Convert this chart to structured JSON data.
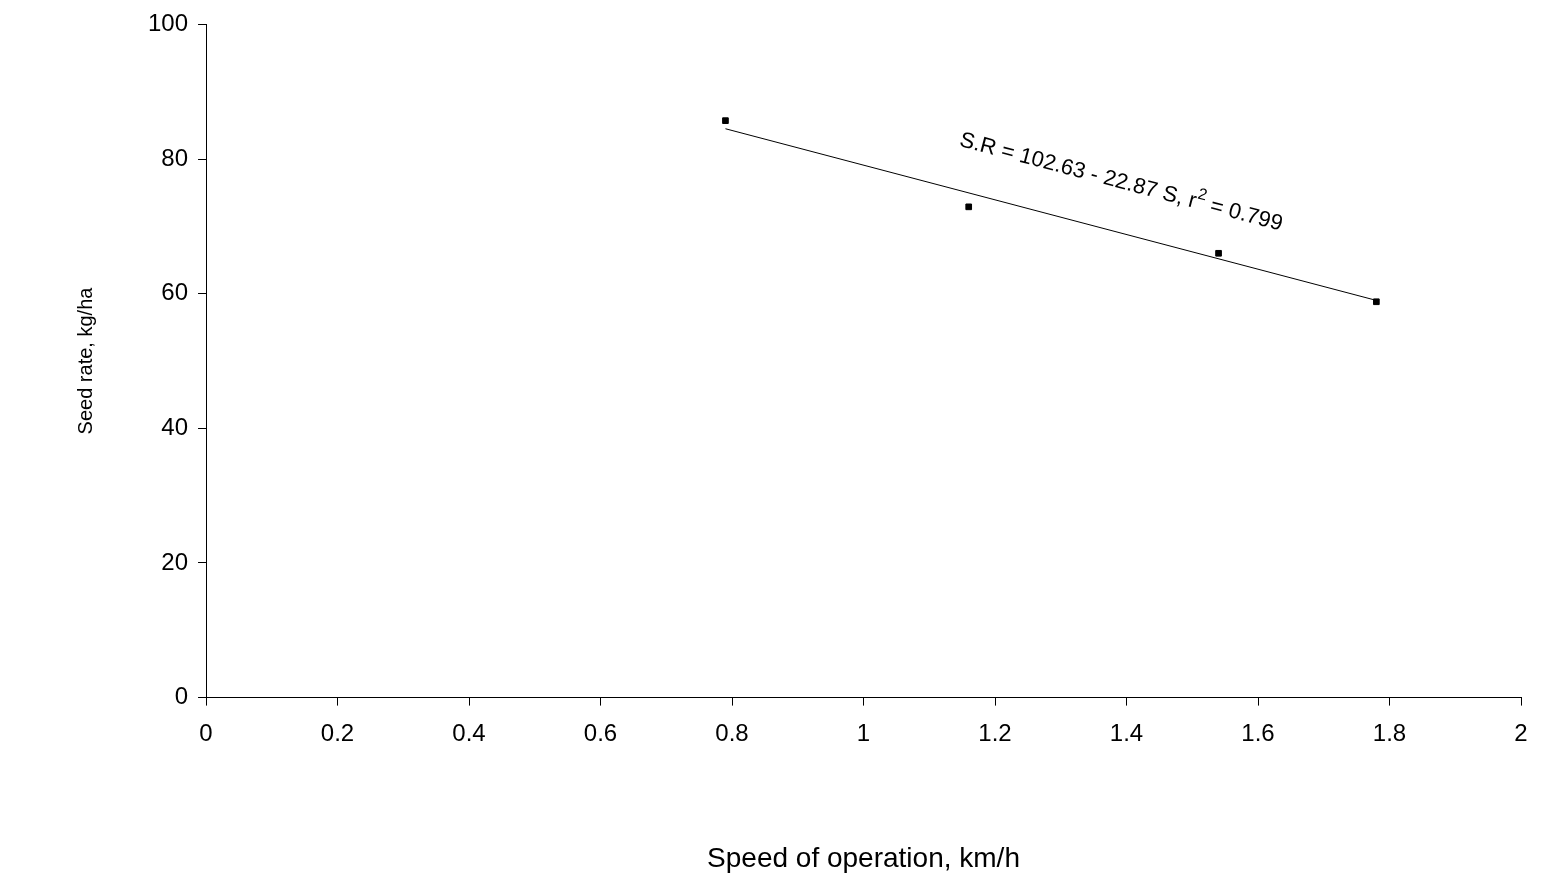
{
  "chart_data": {
    "type": "scatter",
    "xlabel": "Speed of operation, km/h",
    "ylabel": "Seed rate, kg/ha",
    "series": [
      {
        "color": "#000000",
        "marker": "square",
        "x": [
          0.79,
          1.16,
          1.54,
          1.78
        ],
        "values": [
          85.7,
          72.9,
          66.0,
          58.8
        ]
      },
      {
        "type": "line",
        "color": "#000000",
        "marker": "none",
        "x": [
          0.79,
          1.78
        ],
        "values": [
          84.5,
          59.0
        ]
      }
    ],
    "annotations": [
      "S.R = 102.63 - 22.87 S, r$^{2}$ = 0.799"
    ],
    "xlim": [
      0,
      2
    ],
    "xticks": [
      0,
      0.2,
      0.4,
      0.6,
      0.8,
      1,
      1.2,
      1.4,
      1.6,
      1.8,
      2
    ],
    "ylim": [
      0,
      100
    ],
    "yticks": [
      0,
      20,
      40,
      60,
      80,
      100
    ],
    "grid": false,
    "legend": false
  }
}
